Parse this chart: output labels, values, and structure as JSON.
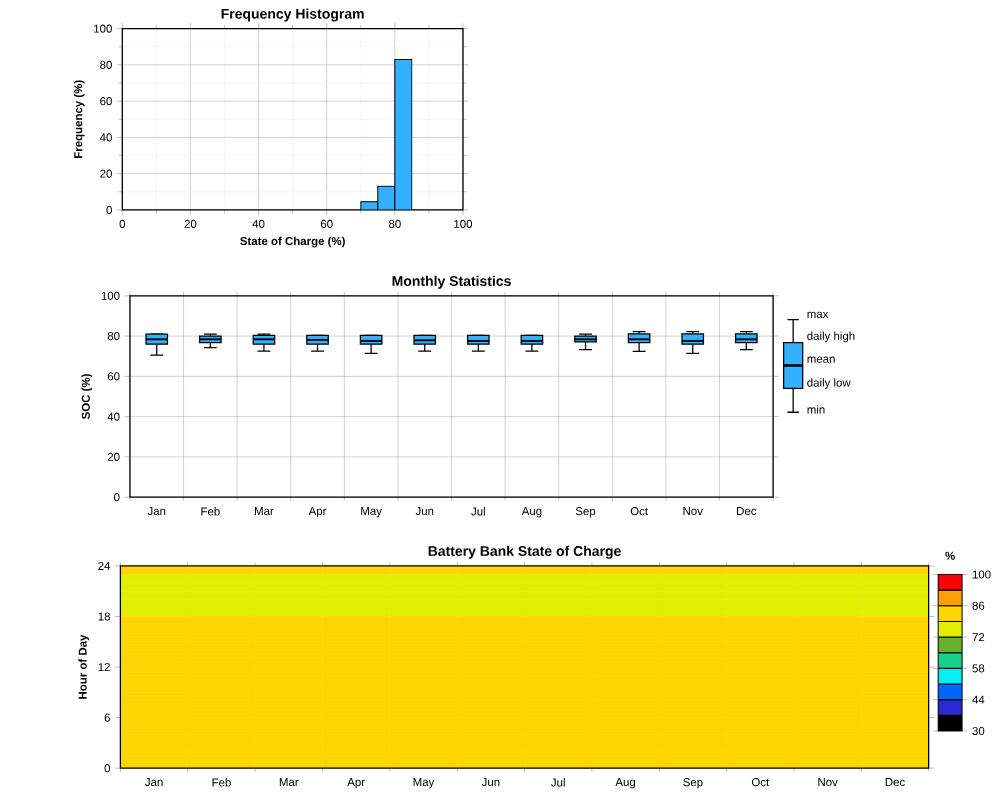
{
  "chart_data": [
    {
      "type": "histogram",
      "title": "Frequency Histogram",
      "xlabel": "State of Charge (%)",
      "ylabel": "Frequency (%)",
      "bins": [
        0,
        5,
        10,
        15,
        20,
        25,
        30,
        35,
        40,
        45,
        50,
        55,
        60,
        65,
        70,
        75,
        80,
        85,
        90,
        95,
        100
      ],
      "values": [
        0,
        0,
        0,
        0,
        0,
        0,
        0,
        0,
        0,
        0,
        0,
        0,
        0,
        0,
        4.5,
        13,
        83,
        0,
        0,
        0
      ],
      "color": "#33b0ff",
      "xlim": [
        0,
        100
      ],
      "ylim": [
        0,
        100
      ],
      "xticks": [
        0,
        20,
        40,
        60,
        80,
        100
      ],
      "yticks": [
        0,
        20,
        40,
        60,
        80,
        100
      ],
      "grid": true
    },
    {
      "type": "box",
      "title": "Monthly Statistics",
      "ylabel": "SOC (%)",
      "categories": [
        "Jan",
        "Feb",
        "Mar",
        "Apr",
        "May",
        "Jun",
        "Jul",
        "Aug",
        "Sep",
        "Oct",
        "Nov",
        "Dec"
      ],
      "boxes": [
        {
          "low": 70.6,
          "q1": 76,
          "median": 78.4,
          "q3": 81,
          "high": 81
        },
        {
          "low": 74.3,
          "q1": 76.8,
          "median": 78.4,
          "q3": 80,
          "high": 81
        },
        {
          "low": 72.5,
          "q1": 76,
          "median": 78.4,
          "q3": 80.3,
          "high": 81
        },
        {
          "low": 72.5,
          "q1": 76,
          "median": 78.1,
          "q3": 80.3,
          "high": 80.3
        },
        {
          "low": 71.4,
          "q1": 76,
          "median": 77.6,
          "q3": 80.3,
          "high": 80.3
        },
        {
          "low": 72.5,
          "q1": 76,
          "median": 77.9,
          "q3": 80.3,
          "high": 80.3
        },
        {
          "low": 72.5,
          "q1": 76,
          "median": 77.6,
          "q3": 80.3,
          "high": 80.3
        },
        {
          "low": 72.5,
          "q1": 76,
          "median": 77.6,
          "q3": 80.3,
          "high": 80.3
        },
        {
          "low": 73.3,
          "q1": 77.1,
          "median": 78.4,
          "q3": 80,
          "high": 81
        },
        {
          "low": 72.4,
          "q1": 76.8,
          "median": 78.4,
          "q3": 81.1,
          "high": 82.2
        },
        {
          "low": 71.4,
          "q1": 76,
          "median": 77.6,
          "q3": 81.1,
          "high": 82.2
        },
        {
          "low": 73.3,
          "q1": 76.8,
          "median": 78.4,
          "q3": 81.1,
          "high": 82.2
        }
      ],
      "color": "#33b0ff",
      "ylim": [
        0,
        100
      ],
      "yticks": [
        0,
        20,
        40,
        60,
        80,
        100
      ],
      "grid": true,
      "annotations": [
        "max",
        "daily high",
        "mean",
        "daily low",
        "min"
      ]
    },
    {
      "type": "heatmap",
      "title": "Battery Bank State of Charge",
      "ylabel": "Hour of Day",
      "clabel": "%",
      "categories": [
        "Jan",
        "Feb",
        "Mar",
        "Apr",
        "May",
        "Jun",
        "Jul",
        "Aug",
        "Sep",
        "Oct",
        "Nov",
        "Dec"
      ],
      "cells": [
        [
          80,
          80,
          80,
          80,
          80,
          80,
          80,
          80,
          80,
          80,
          80,
          80
        ],
        [
          75,
          75,
          75,
          75,
          75,
          75,
          75,
          75,
          75,
          75,
          75,
          75
        ],
        [
          75,
          75,
          75,
          75,
          75,
          75,
          75,
          75,
          75,
          75,
          75,
          75
        ],
        [
          75,
          75,
          75,
          75,
          75,
          75,
          75,
          75,
          75,
          75,
          75,
          75
        ],
        [
          75,
          75,
          75,
          75,
          75,
          75,
          75,
          75,
          75,
          75,
          75,
          75
        ],
        [
          75,
          75,
          75,
          75,
          75,
          75,
          75,
          75,
          75,
          75,
          75,
          75
        ],
        [
          80,
          80,
          80,
          80,
          80,
          80,
          80,
          80,
          80,
          80,
          80,
          80
        ],
        [
          80,
          80,
          80,
          80,
          80,
          80,
          80,
          80,
          80,
          80,
          80,
          80
        ],
        [
          80,
          80,
          80,
          80,
          80,
          80,
          80,
          80,
          80,
          80,
          80,
          80
        ],
        [
          80,
          80,
          80,
          80,
          80,
          80,
          80,
          80,
          80,
          80,
          80,
          80
        ],
        [
          80,
          80,
          80,
          80,
          80,
          80,
          80,
          80,
          80,
          80,
          80,
          80
        ],
        [
          80,
          80,
          80,
          80,
          80,
          80,
          80,
          80,
          80,
          80,
          80,
          80
        ],
        [
          80,
          80,
          80,
          80,
          80,
          80,
          80,
          80,
          80,
          80,
          80,
          80
        ],
        [
          80,
          80,
          80,
          80,
          80,
          80,
          80,
          80,
          80,
          80,
          80,
          80
        ],
        [
          80,
          80,
          80,
          80,
          80,
          80,
          80,
          80,
          80,
          80,
          80,
          80
        ],
        [
          80,
          80,
          80,
          80,
          80,
          80,
          80,
          80,
          80,
          80,
          80,
          80
        ],
        [
          80,
          80,
          80,
          80,
          80,
          80,
          80,
          80,
          80,
          80,
          80,
          80
        ],
        [
          80,
          80,
          80,
          80,
          80,
          80,
          80,
          80,
          80,
          80,
          80,
          80
        ],
        [
          80,
          80,
          80,
          80,
          80,
          80,
          80,
          80,
          80,
          80,
          80,
          80
        ],
        [
          80,
          80,
          80,
          80,
          80,
          80,
          80,
          80,
          80,
          80,
          80,
          80
        ],
        [
          80,
          80,
          80,
          80,
          80,
          80,
          80,
          80,
          80,
          80,
          80,
          80
        ],
        [
          80,
          80,
          80,
          80,
          80,
          80,
          80,
          80,
          80,
          80,
          80,
          80
        ],
        [
          80,
          80,
          80,
          80,
          80,
          80,
          80,
          80,
          80,
          80,
          80,
          80
        ],
        [
          80,
          80,
          80,
          80,
          80,
          80,
          80,
          80,
          80,
          80,
          80,
          80
        ]
      ],
      "ylim": [
        0,
        24
      ],
      "yticks": [
        0,
        6,
        12,
        18,
        24
      ],
      "clim": [
        30,
        100
      ],
      "cticks": [
        30,
        44,
        58,
        72,
        86,
        100
      ]
    }
  ]
}
